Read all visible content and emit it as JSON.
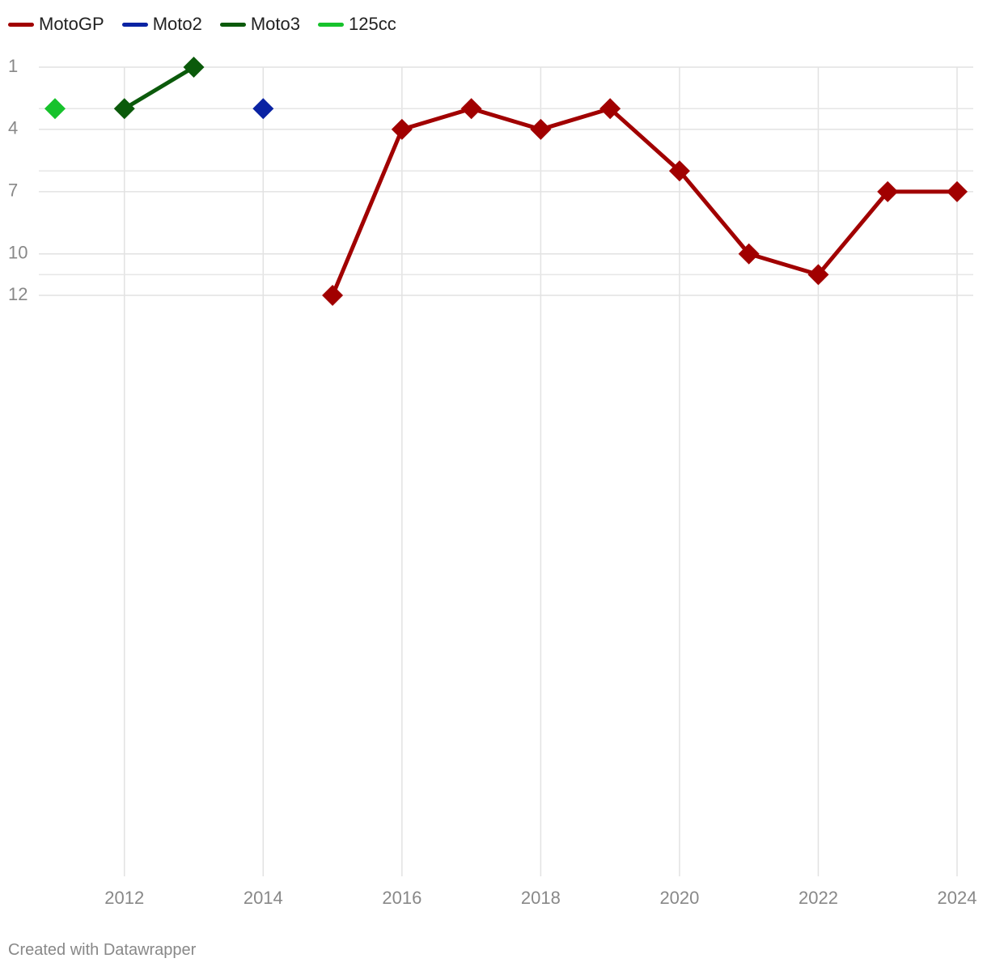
{
  "chart_data": {
    "type": "line",
    "xlim": [
      2011,
      2024
    ],
    "ylim": [
      1,
      40
    ],
    "y_reversed": true,
    "x_ticks": [
      "2012",
      "2014",
      "2016",
      "2018",
      "2020",
      "2022",
      "2024"
    ],
    "x_tick_values": [
      2012,
      2014,
      2016,
      2018,
      2020,
      2022,
      2024
    ],
    "y_ticks": [
      "1",
      "4",
      "7",
      "10",
      "12"
    ],
    "y_tick_values": [
      1,
      4,
      7,
      10,
      12
    ],
    "y_minor_grid": [
      3,
      6,
      11
    ],
    "grid": true,
    "legend_position": "top-left",
    "marker": "diamond",
    "series": [
      {
        "name": "MotoGP",
        "color": "#a10000",
        "points": [
          [
            2015,
            12
          ],
          [
            2016,
            4
          ],
          [
            2017,
            3
          ],
          [
            2018,
            4
          ],
          [
            2019,
            3
          ],
          [
            2020,
            6
          ],
          [
            2021,
            10
          ],
          [
            2022,
            11
          ],
          [
            2023,
            7
          ],
          [
            2024,
            7
          ]
        ]
      },
      {
        "name": "Moto2",
        "color": "#0a23a3",
        "points": [
          [
            2014,
            3
          ]
        ]
      },
      {
        "name": "Moto3",
        "color": "#0b5a0b",
        "points": [
          [
            2012,
            3
          ],
          [
            2013,
            1
          ]
        ]
      },
      {
        "name": "125cc",
        "color": "#17c22c",
        "points": [
          [
            2011,
            3
          ]
        ]
      }
    ]
  },
  "footer": {
    "credit": "Created with Datawrapper"
  }
}
